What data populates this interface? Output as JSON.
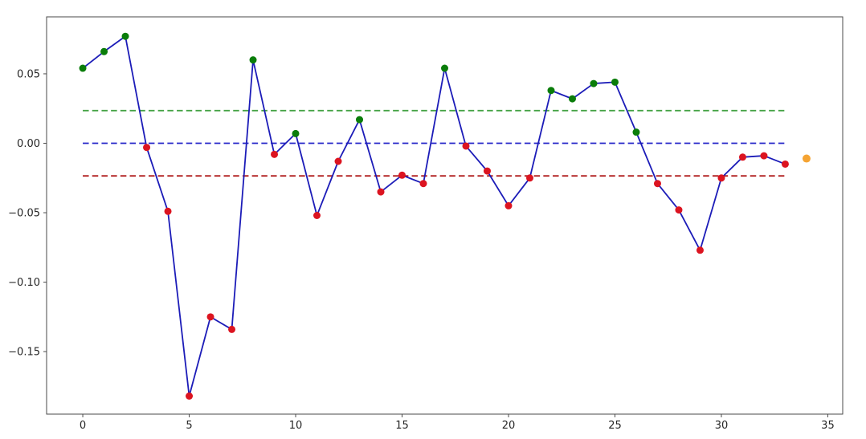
{
  "chart_data": {
    "type": "line",
    "title": "",
    "xlabel": "",
    "ylabel": "",
    "x": [
      0,
      1,
      2,
      3,
      4,
      5,
      6,
      7,
      8,
      9,
      10,
      11,
      12,
      13,
      14,
      15,
      16,
      17,
      18,
      19,
      20,
      21,
      22,
      23,
      24,
      25,
      26,
      27,
      28,
      29,
      30,
      31,
      32,
      33
    ],
    "y": [
      0.054,
      0.066,
      0.077,
      -0.003,
      -0.049,
      -0.182,
      -0.125,
      -0.134,
      0.06,
      -0.008,
      0.007,
      -0.052,
      -0.013,
      0.017,
      -0.035,
      -0.023,
      -0.029,
      0.054,
      -0.002,
      -0.02,
      -0.045,
      -0.025,
      0.038,
      0.032,
      0.043,
      0.044,
      0.008,
      -0.029,
      -0.048,
      -0.077,
      -0.025,
      -0.01,
      -0.009,
      -0.015
    ],
    "line_color": "#1c1cb8",
    "marker_rule": "green if value > 0 else red",
    "marker_colors": {
      "positive": "#0a7d0a",
      "negative": "#dc1420"
    },
    "extra_point": {
      "x": 34,
      "y": -0.011,
      "color": "#f5a433"
    },
    "hlines": [
      {
        "name": "upper-threshold",
        "y": 0.0235,
        "color": "#46a346",
        "x_start": 0,
        "x_end": 33,
        "style": "dashed"
      },
      {
        "name": "zero-mean",
        "y": 0.0,
        "color": "#2323c8",
        "x_start": 0,
        "x_end": 33,
        "style": "dashed"
      },
      {
        "name": "lower-threshold",
        "y": -0.0235,
        "color": "#b22222",
        "x_start": 0,
        "x_end": 33,
        "style": "dashed"
      }
    ],
    "xlim": [
      -1.7,
      35.7
    ],
    "ylim": [
      -0.195,
      0.091
    ],
    "xticks": [
      0,
      5,
      10,
      15,
      20,
      25,
      30,
      35
    ],
    "xtick_labels": [
      "0",
      "5",
      "10",
      "15",
      "20",
      "25",
      "30",
      "35"
    ],
    "yticks": [
      0.05,
      0.0,
      -0.05,
      -0.1,
      -0.15
    ],
    "ytick_labels": [
      "0.05",
      "0.00",
      "−0.05",
      "−0.10",
      "−0.15"
    ],
    "grid": false,
    "legend": null,
    "axis_color": "#4a4a4a"
  }
}
